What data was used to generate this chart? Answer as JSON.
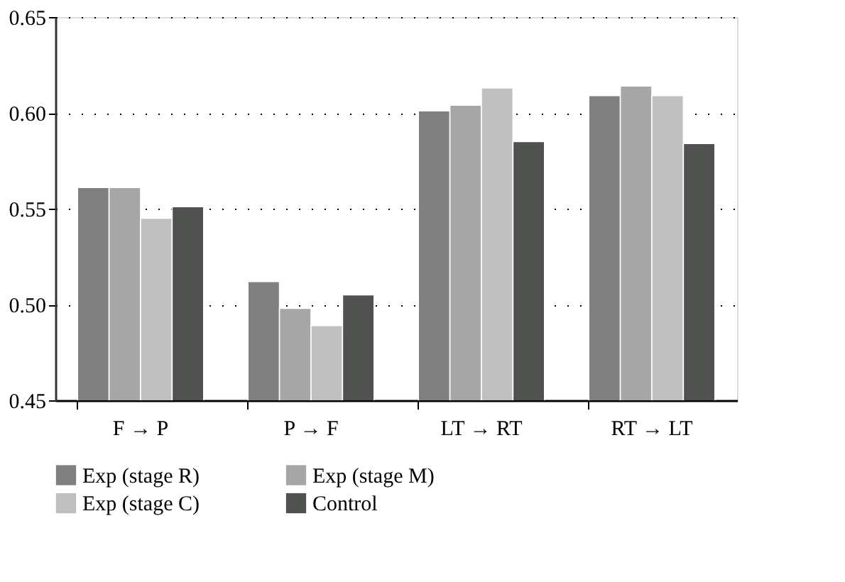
{
  "chart_data": {
    "type": "bar",
    "categories": [
      "F → P",
      "P → F",
      "LT → RT",
      "RT → LT"
    ],
    "series": [
      {
        "name": "Exp (stage R)",
        "color": "#808080",
        "values": [
          0.561,
          0.512,
          0.601,
          0.609
        ]
      },
      {
        "name": "Exp (stage M)",
        "color": "#a6a6a6",
        "values": [
          0.561,
          0.498,
          0.604,
          0.614
        ]
      },
      {
        "name": "Exp (stage C)",
        "color": "#bfbfbf",
        "values": [
          0.545,
          0.489,
          0.613,
          0.609
        ]
      },
      {
        "name": "Control",
        "color": "#505250",
        "values": [
          0.551,
          0.505,
          0.585,
          0.584
        ]
      }
    ],
    "ylim": [
      0.45,
      0.65
    ],
    "yticks": [
      {
        "value": 0.45,
        "label": "0.45"
      },
      {
        "value": 0.5,
        "label": "0.50"
      },
      {
        "value": 0.55,
        "label": "0.55"
      },
      {
        "value": 0.6,
        "label": "0.60"
      },
      {
        "value": 0.65,
        "label": "0.65"
      }
    ],
    "grid": "y",
    "legend": "bottom"
  }
}
